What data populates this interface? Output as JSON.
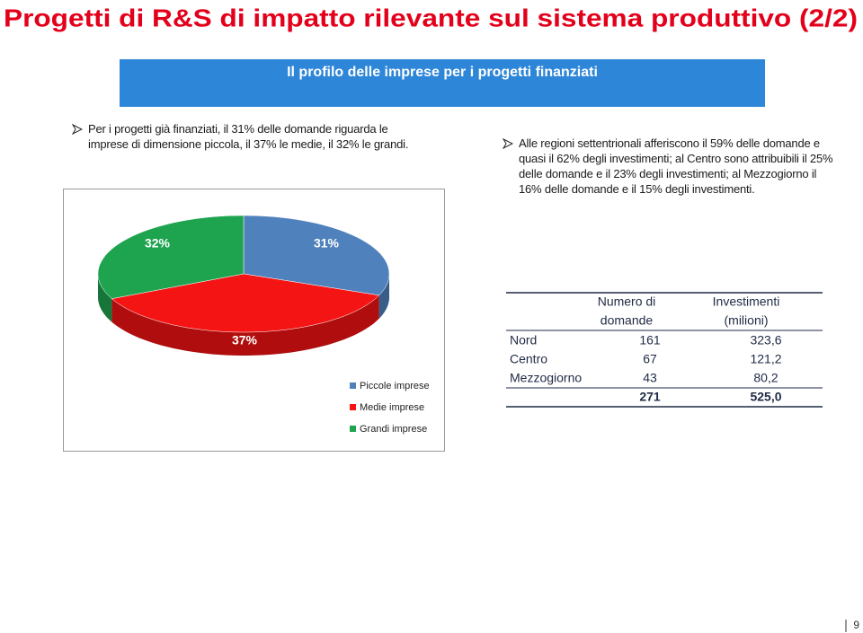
{
  "title": "Progetti di R&S di impatto rilevante sul sistema produttivo (2/2)",
  "banner": "Il profilo delle imprese per i progetti  finanziati",
  "bullets": [
    "Per i progetti già finanziati, il 31% delle domande riguarda le imprese di dimensione piccola, il 37% le medie, il 32% le grandi.",
    "Alle regioni settentrionali afferiscono il 59% delle domande e quasi il 62% degli investimenti; al Centro sono attribuibili il 25% delle domande e il 23% degli investimenti; al Mezzogiorno il 16% delle domande e il 15% degli investimenti."
  ],
  "chart_data": {
    "type": "pie",
    "categories": [
      "Piccole imprese",
      "Medie imprese",
      "Grandi imprese"
    ],
    "values": [
      31,
      37,
      32
    ],
    "value_labels": [
      "31%",
      "37%",
      "32%"
    ],
    "colors": [
      "#4f81bd",
      "#f51414",
      "#1ea34f"
    ]
  },
  "table": {
    "header": [
      [
        "Numero di",
        "domande"
      ],
      [
        "Investimenti",
        "(milioni)"
      ]
    ],
    "rows": [
      [
        "Nord",
        "161",
        "323,6"
      ],
      [
        "Centro",
        "67",
        "121,2"
      ],
      [
        "Mezzogiorno",
        "43",
        "80,2"
      ]
    ],
    "total": [
      "271",
      "525,0"
    ]
  },
  "page_number": "9"
}
